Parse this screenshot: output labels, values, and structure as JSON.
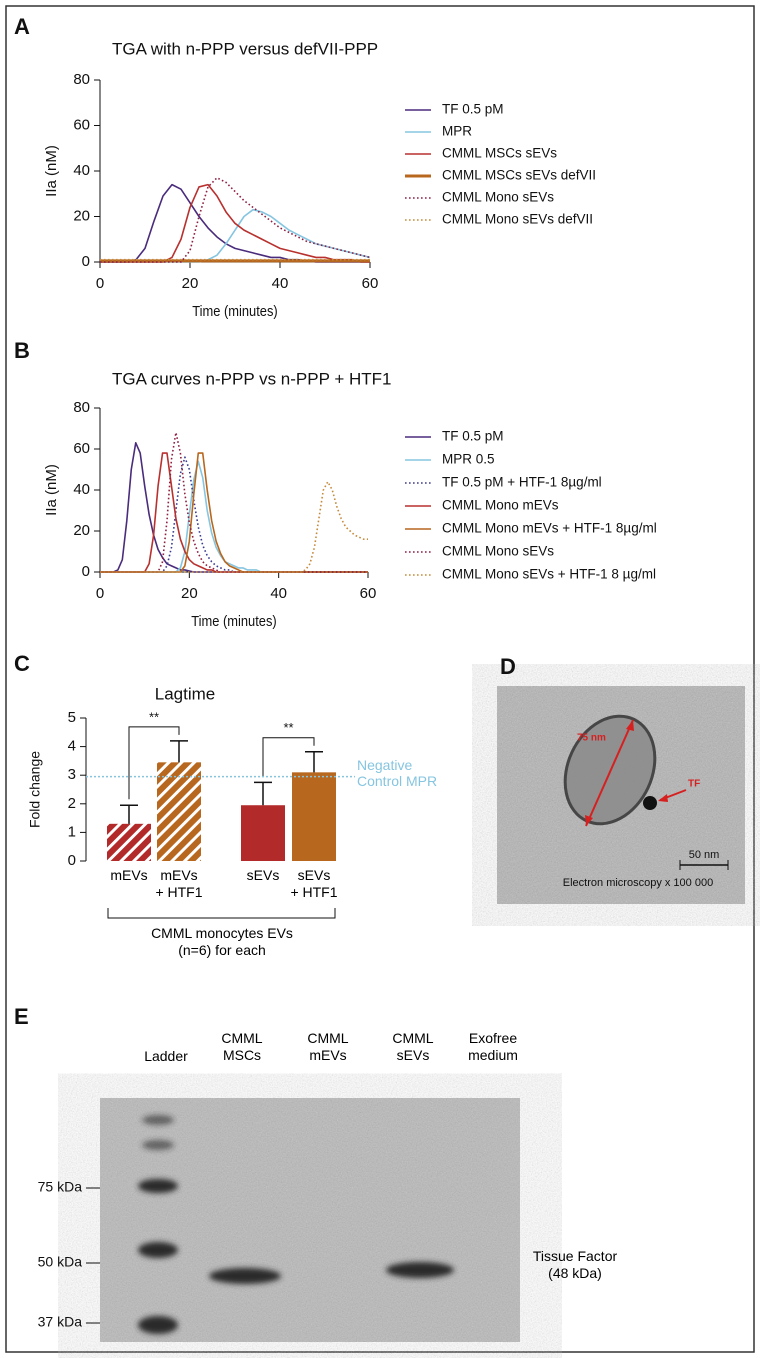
{
  "chart_data": [
    {
      "type": "line",
      "panel_label": "A",
      "title": "TGA with n-PPP versus defVII-PPP",
      "x_label": "Time (minutes)",
      "y_label": "IIa (nM)",
      "xlim": [
        0,
        60
      ],
      "xticks": [
        0,
        20,
        40,
        60
      ],
      "ylim": [
        0,
        80
      ],
      "yticks": [
        0,
        20,
        40,
        60,
        80
      ],
      "legend": "right",
      "x": [
        0,
        2,
        4,
        6,
        8,
        10,
        12,
        14,
        16,
        18,
        20,
        22,
        24,
        26,
        28,
        30,
        32,
        34,
        36,
        38,
        40,
        42,
        44,
        46,
        48,
        50,
        52,
        54,
        56,
        58,
        60
      ],
      "series": [
        {
          "name": "TF 0.5 pM",
          "color": "#4a2c7d",
          "style": "solid",
          "values": [
            0,
            0,
            0,
            0,
            1,
            6,
            18,
            29,
            34,
            32,
            26,
            20,
            15,
            11,
            8,
            6,
            5,
            4,
            3,
            2,
            2,
            1,
            1,
            0.5,
            0,
            0,
            0,
            0,
            0,
            0,
            0
          ]
        },
        {
          "name": "MPR",
          "color": "#86c5e0",
          "style": "solid",
          "values": [
            0,
            0,
            0,
            0,
            0,
            0,
            0,
            0,
            0,
            0,
            0,
            0,
            1,
            3,
            8,
            14,
            20,
            23,
            22,
            20,
            17,
            14,
            12,
            10,
            8,
            7,
            6,
            5,
            4,
            3,
            2
          ]
        },
        {
          "name": "CMML MSCs sEVs",
          "color": "#b8312f",
          "style": "solid",
          "values": [
            0,
            0,
            0,
            0,
            0,
            0,
            0,
            0,
            2,
            10,
            24,
            33,
            34,
            29,
            22,
            17,
            14,
            12,
            10,
            8,
            6,
            5,
            4,
            3,
            2,
            2,
            1,
            1,
            1,
            0,
            0
          ]
        },
        {
          "name": "CMML MSCs sEVs defVII",
          "color": "#b8671e",
          "style": "thick",
          "values": [
            0.5,
            0.5,
            0.5,
            0.5,
            0.5,
            0.5,
            0.5,
            0.5,
            0.5,
            0.5,
            0.5,
            0.5,
            0.5,
            0.5,
            0.5,
            0.5,
            0.5,
            0.5,
            0.5,
            0.5,
            0.5,
            0.5,
            0.5,
            0.5,
            0.5,
            0.5,
            0.5,
            0.5,
            0.5,
            0.5,
            0.5
          ]
        },
        {
          "name": "CMML Mono sEVs",
          "color": "#8e2042",
          "style": "dotted",
          "values": [
            0,
            0,
            0,
            0,
            0,
            0,
            0,
            0,
            0,
            0,
            5,
            20,
            33,
            37,
            35,
            31,
            27,
            24,
            21,
            18,
            15,
            13,
            11,
            9,
            8,
            7,
            6,
            5,
            4,
            3,
            2
          ]
        },
        {
          "name": "CMML Mono sEVs defVII",
          "color": "#c58a3b",
          "style": "dotted",
          "values": [
            1,
            1,
            1,
            1,
            1,
            1,
            1,
            1,
            1,
            1,
            1,
            1,
            1,
            1,
            1,
            1,
            1,
            1,
            1,
            1,
            1,
            1,
            1,
            1,
            1,
            1,
            1,
            1,
            1,
            1,
            1
          ]
        }
      ]
    },
    {
      "type": "line",
      "panel_label": "B",
      "title": "TGA curves n-PPP vs n-PPP + HTF1",
      "x_label": "Time (minutes)",
      "y_label": "IIa (nM)",
      "xlim": [
        0,
        60
      ],
      "xticks": [
        0,
        20,
        40,
        60
      ],
      "ylim": [
        0,
        80
      ],
      "yticks": [
        0,
        20,
        40,
        60,
        80
      ],
      "legend": "right",
      "x": [
        0,
        1,
        2,
        3,
        4,
        5,
        6,
        7,
        8,
        9,
        10,
        11,
        12,
        13,
        14,
        15,
        16,
        17,
        18,
        19,
        20,
        21,
        22,
        23,
        24,
        25,
        26,
        27,
        28,
        29,
        30,
        31,
        32,
        33,
        34,
        35,
        36,
        37,
        38,
        39,
        40,
        41,
        42,
        43,
        44,
        45,
        46,
        47,
        48,
        49,
        50,
        51,
        52,
        53,
        54,
        55,
        56,
        57,
        58,
        59,
        60
      ],
      "series": [
        {
          "name": "TF 0.5 pM",
          "color": "#4a2c7d",
          "style": "solid",
          "values": [
            0,
            0,
            0,
            0,
            1,
            6,
            25,
            50,
            63,
            58,
            42,
            28,
            18,
            11,
            7,
            4,
            3,
            2,
            1,
            1,
            0.5,
            0,
            0,
            0,
            0,
            0,
            0,
            0,
            0,
            0,
            0,
            0,
            0,
            0,
            0,
            0,
            0,
            0,
            0,
            0,
            0,
            0,
            0,
            0,
            0,
            0,
            0,
            0,
            0,
            0,
            0,
            0,
            0,
            0,
            0,
            0,
            0,
            0,
            0,
            0,
            0
          ]
        },
        {
          "name": "MPR 0.5",
          "color": "#86c5e0",
          "style": "solid",
          "values": [
            0,
            0,
            0,
            0,
            0,
            0,
            0,
            0,
            0,
            0,
            0,
            0,
            0,
            0,
            0,
            0,
            0,
            0,
            2,
            10,
            28,
            45,
            54,
            46,
            30,
            19,
            12,
            8,
            5,
            4,
            3,
            2,
            2,
            1,
            1,
            1,
            0,
            0,
            0,
            0,
            0,
            0,
            0,
            0,
            0,
            0,
            0,
            0,
            0,
            0,
            0,
            0,
            0,
            0,
            0,
            0,
            0,
            0,
            0,
            0,
            0
          ]
        },
        {
          "name": "TF 0.5 pM + HTF-1 8µg/ml",
          "color": "#3b3b8f",
          "style": "dotted",
          "values": [
            0,
            0,
            0,
            0,
            0,
            0,
            0,
            0,
            0,
            0,
            0,
            0,
            0,
            0,
            0,
            3,
            12,
            30,
            48,
            56,
            50,
            35,
            22,
            13,
            8,
            5,
            3,
            2,
            1,
            1,
            0,
            0,
            0,
            0,
            0,
            0,
            0,
            0,
            0,
            0,
            0,
            0,
            0,
            0,
            0,
            0,
            0,
            0,
            0,
            0,
            0,
            0,
            0,
            0,
            0,
            0,
            0,
            0,
            0,
            0,
            0
          ]
        },
        {
          "name": "CMML Mono mEVs",
          "color": "#b8312f",
          "style": "solid",
          "values": [
            0,
            0,
            0,
            0,
            0,
            0,
            0,
            0,
            0,
            0,
            0,
            4,
            18,
            42,
            58,
            58,
            42,
            26,
            16,
            10,
            6,
            4,
            3,
            2,
            1,
            1,
            0,
            0,
            0,
            0,
            0,
            0,
            0,
            0,
            0,
            0,
            0,
            0,
            0,
            0,
            0,
            0,
            0,
            0,
            0,
            0,
            0,
            0,
            0,
            0,
            0,
            0,
            0,
            0,
            0,
            0,
            0,
            0,
            0,
            0,
            0
          ]
        },
        {
          "name": "CMML Mono mEVs + HTF-1 8µg/ml",
          "color": "#b8671e",
          "style": "solid",
          "values": [
            0,
            0,
            0,
            0,
            0,
            0,
            0,
            0,
            0,
            0,
            0,
            0,
            0,
            0,
            0,
            0,
            0,
            0,
            0,
            3,
            15,
            38,
            58,
            58,
            40,
            25,
            15,
            9,
            5,
            3,
            2,
            1,
            0,
            0,
            0,
            0,
            0,
            0,
            0,
            0,
            0,
            0,
            0,
            0,
            0,
            0,
            0,
            0,
            0,
            0,
            0,
            0,
            0,
            0,
            0,
            0,
            0,
            0,
            0,
            0,
            0
          ]
        },
        {
          "name": "CMML Mono sEVs",
          "color": "#8e2042",
          "style": "dotted",
          "values": [
            0,
            0,
            0,
            0,
            0,
            0,
            0,
            0,
            0,
            0,
            0,
            0,
            0,
            0,
            5,
            25,
            55,
            68,
            58,
            38,
            24,
            15,
            9,
            5,
            3,
            2,
            1,
            0,
            0,
            0,
            0,
            0,
            0,
            0,
            0,
            0,
            0,
            0,
            0,
            0,
            0,
            0,
            0,
            0,
            0,
            0,
            0,
            0,
            0,
            0,
            0,
            0,
            0,
            0,
            0,
            0,
            0,
            0,
            0,
            0,
            0
          ]
        },
        {
          "name": "CMML Mono sEVs + HTF-1 8 µg/ml",
          "color": "#c58a3b",
          "style": "dotted",
          "values": [
            0,
            0,
            0,
            0,
            0,
            0,
            0,
            0,
            0,
            0,
            0,
            0,
            0,
            0,
            0,
            0,
            0,
            0,
            0,
            0,
            0,
            0,
            0,
            0,
            0,
            0,
            0,
            0,
            0,
            0,
            0,
            0,
            0,
            0,
            0,
            0,
            0,
            0,
            0,
            0,
            0,
            0,
            0,
            0,
            0,
            0,
            1,
            4,
            12,
            26,
            40,
            44,
            40,
            32,
            26,
            22,
            20,
            18,
            17,
            16,
            16
          ]
        }
      ]
    },
    {
      "type": "bar",
      "panel_label": "C",
      "title": "Lagtime",
      "y_label": "Fold change",
      "ylim": [
        0,
        5
      ],
      "yticks": [
        0,
        1,
        2,
        3,
        4,
        5
      ],
      "categories": [
        "mEVs",
        "mEVs\n+ HTF1",
        "sEVs",
        "sEVs\n+ HTF1"
      ],
      "values": [
        1.3,
        3.45,
        1.95,
        3.1
      ],
      "errors": [
        0.65,
        0.75,
        0.8,
        0.72
      ],
      "colors": [
        "#b22a2a",
        "#b8671e",
        "#b22a2a",
        "#b8671e"
      ],
      "hatched": [
        true,
        true,
        false,
        false
      ],
      "significance": [
        {
          "label": "**",
          "bars": [
            0,
            1
          ]
        },
        {
          "label": "**",
          "bars": [
            2,
            3
          ]
        }
      ],
      "reference_line": {
        "value": 2.95,
        "label": "Negative\nControl MPR",
        "color": "#86c5e0"
      },
      "group_label": "CMML monocytes EVs\n(n=6) for each"
    }
  ],
  "panel_d": {
    "label": "D",
    "annotations": [
      "75 nm",
      "TF"
    ],
    "scale_bar": "50 nm",
    "caption": "Electron microscopy x 100 000"
  },
  "panel_e": {
    "label": "E",
    "lanes": [
      "Ladder",
      "CMML\nMSCs",
      "CMML\nmEVs",
      "CMML\nsEVs",
      "Exofree\nmedium"
    ],
    "markers": [
      "75 kDa",
      "50 kDa",
      "37 kDa"
    ],
    "band_label": "Tissue Factor\n(48 kDa)"
  }
}
